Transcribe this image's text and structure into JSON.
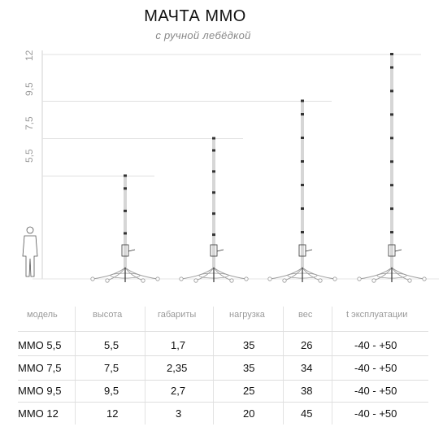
{
  "title": "МАЧТА ММО",
  "subtitle": "с ручной лебёдкой",
  "scale_labels": [
    "12",
    "9,5",
    "7,5",
    "5,5"
  ],
  "table": {
    "headers": [
      "модель",
      "высота",
      "габариты",
      "нагрузка",
      "вес",
      "t эксплуатации"
    ],
    "rows": [
      [
        "ММО 5,5",
        "5,5",
        "1,7",
        "35",
        "26",
        "-40 - +50"
      ],
      [
        "ММО 7,5",
        "7,5",
        "2,35",
        "35",
        "34",
        "-40 - +50"
      ],
      [
        "ММО 9,5",
        "9,5",
        "2,7",
        "25",
        "38",
        "-40 - +50"
      ],
      [
        "ММО 12",
        "12",
        "3",
        "20",
        "45",
        "-40 - +50"
      ]
    ]
  },
  "masts": [
    {
      "model": "ММО 5,5",
      "height": 5.5
    },
    {
      "model": "ММО 7,5",
      "height": 7.5
    },
    {
      "model": "ММО 9,5",
      "height": 9.5
    },
    {
      "model": "ММО 12",
      "height": 12
    }
  ],
  "colors": {
    "line": "#9a9a9a",
    "dark": "#333333",
    "faint": "#e0e0e0"
  }
}
